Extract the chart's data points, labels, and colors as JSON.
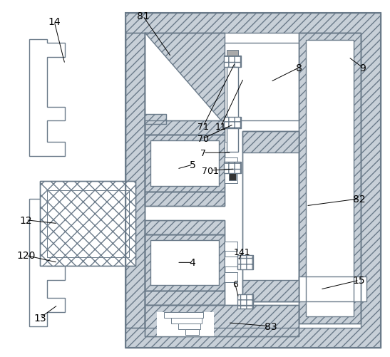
{
  "background_color": "#ffffff",
  "line_color": "#6b7b8a",
  "hatch_fill": "#c8d0d8",
  "text_color": "#000000",
  "fig_width": 5.47,
  "fig_height": 5.02,
  "dpi": 100
}
